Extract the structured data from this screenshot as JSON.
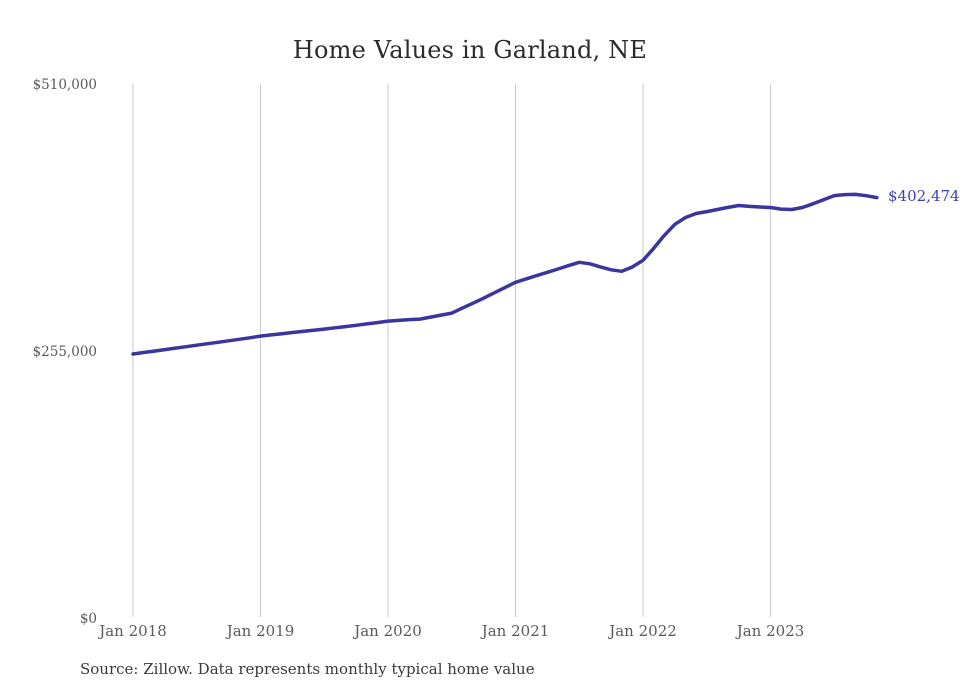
{
  "chart_data": {
    "type": "line",
    "title": "Home Values in Garland, NE",
    "source_note": "Source: Zillow. Data represents monthly typical home value",
    "series_name": "Monthly typical home value",
    "end_label": "$402,474",
    "end_value": 402474,
    "x_tick_labels": [
      "Jan 2018",
      "Jan 2019",
      "Jan 2020",
      "Jan 2021",
      "Jan 2022",
      "Jan 2023"
    ],
    "y_tick_labels": [
      "$510,000",
      "$255,000",
      "$0"
    ],
    "ylim": [
      0,
      510000
    ],
    "grid": "vertical-only",
    "legend_position": "none",
    "line_color": "#3c35a0",
    "grid_color": "#c9c9c9",
    "label_color": "#4040b2",
    "months": [
      "2018-01",
      "2018-02",
      "2018-03",
      "2018-04",
      "2018-05",
      "2018-06",
      "2018-07",
      "2018-08",
      "2018-09",
      "2018-10",
      "2018-11",
      "2018-12",
      "2019-01",
      "2019-02",
      "2019-03",
      "2019-04",
      "2019-05",
      "2019-06",
      "2019-07",
      "2019-08",
      "2019-09",
      "2019-10",
      "2019-11",
      "2019-12",
      "2020-01",
      "2020-02",
      "2020-03",
      "2020-04",
      "2020-05",
      "2020-06",
      "2020-07",
      "2020-08",
      "2020-09",
      "2020-10",
      "2020-11",
      "2020-12",
      "2021-01",
      "2021-02",
      "2021-03",
      "2021-04",
      "2021-05",
      "2021-06",
      "2021-07",
      "2021-08",
      "2021-09",
      "2021-10",
      "2021-11",
      "2021-12",
      "2022-01",
      "2022-02",
      "2022-03",
      "2022-04",
      "2022-05",
      "2022-06",
      "2022-07",
      "2022-08",
      "2022-09",
      "2022-10",
      "2022-11",
      "2022-12",
      "2023-01",
      "2023-02",
      "2023-03",
      "2023-04",
      "2023-05",
      "2023-06",
      "2023-07",
      "2023-08",
      "2023-09",
      "2023-10",
      "2023-11"
    ],
    "values": [
      253097,
      254500,
      255900,
      257300,
      258700,
      260100,
      261500,
      262900,
      264300,
      265700,
      267100,
      268600,
      270224,
      271300,
      272400,
      273600,
      274700,
      275800,
      276884,
      278100,
      279300,
      280500,
      281800,
      283100,
      284496,
      285200,
      285900,
      286400,
      288300,
      290200,
      292108,
      296900,
      301600,
      306380,
      311500,
      316500,
      321604,
      324800,
      328000,
      331119,
      334300,
      337500,
      340634,
      339200,
      336300,
      333500,
      332071,
      336200,
      342537,
      353955,
      366325,
      377000,
      383500,
      387260,
      389100,
      391100,
      393100,
      394872,
      394100,
      393500,
      393000,
      391500,
      391066,
      393000,
      396500,
      400500,
      404386,
      405300,
      405500,
      404300,
      402474
    ]
  }
}
